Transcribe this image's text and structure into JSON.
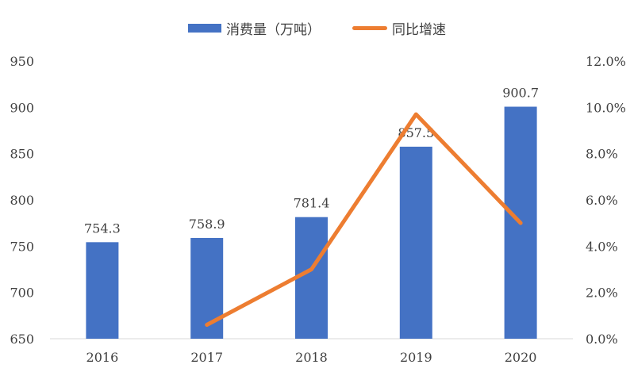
{
  "chart_data": {
    "type": "bar",
    "categories": [
      "2016",
      "2017",
      "2018",
      "2019",
      "2020"
    ],
    "series": [
      {
        "name": "消费量（万吨）",
        "kind": "bar",
        "axis": "left",
        "color": "#4472C4",
        "values": [
          754.3,
          758.9,
          781.4,
          857.5,
          900.7
        ],
        "labels": [
          "754.3",
          "758.9",
          "781.4",
          "857.5",
          "900.7"
        ]
      },
      {
        "name": "同比增速",
        "kind": "line",
        "axis": "right",
        "color": "#ED7D31",
        "values": [
          null,
          0.006,
          0.03,
          0.097,
          0.05
        ]
      }
    ],
    "y_left": {
      "ylim": [
        650,
        950
      ],
      "ticks": [
        "650",
        "700",
        "750",
        "800",
        "850",
        "900",
        "950"
      ]
    },
    "y_right": {
      "ylim": [
        0,
        0.12
      ],
      "ticks": [
        "0.0%",
        "2.0%",
        "4.0%",
        "6.0%",
        "8.0%",
        "10.0%",
        "12.0%"
      ]
    },
    "grid": false,
    "legend_position": "top-center"
  }
}
